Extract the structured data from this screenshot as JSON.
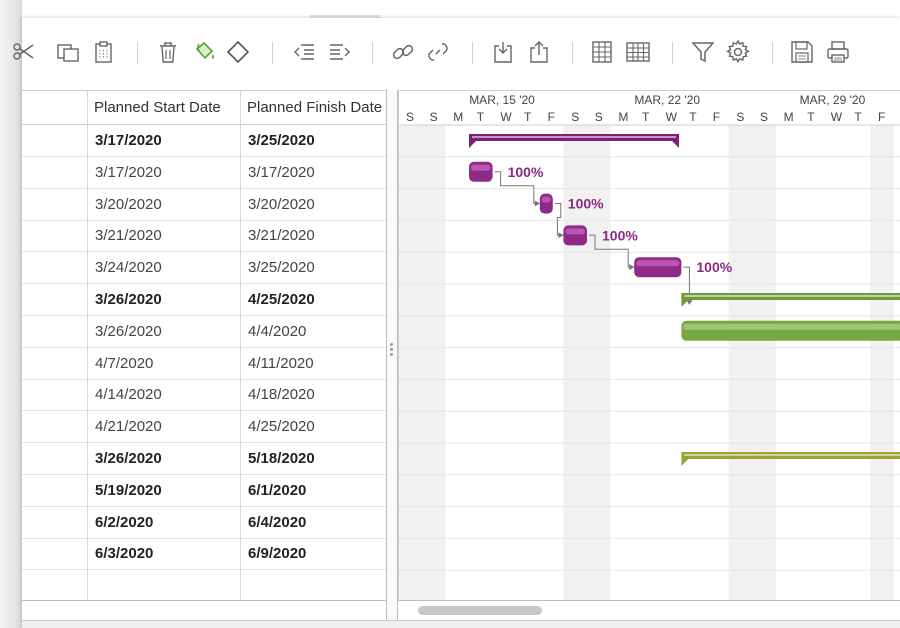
{
  "toolbar": {
    "groups": [
      [
        "scissors-icon",
        "copy-icon",
        "paste-icon"
      ],
      [
        "trash-icon",
        "paint-bucket-icon",
        "diamond-milestone-icon"
      ],
      [
        "outdent-icon",
        "indent-icon"
      ],
      [
        "link-icon",
        "unlink-icon"
      ],
      [
        "import-icon",
        "export-icon"
      ],
      [
        "columns-icon",
        "table-icon"
      ],
      [
        "filter-icon",
        "gear-icon"
      ],
      [
        "save-icon",
        "print-icon"
      ]
    ]
  },
  "grid": {
    "columns": [
      {
        "key": "start",
        "label": "Planned Start Date"
      },
      {
        "key": "finish",
        "label": "Planned Finish Date"
      }
    ],
    "rows": [
      {
        "start": "3/17/2020",
        "finish": "3/25/2020",
        "bold": true
      },
      {
        "start": "3/17/2020",
        "finish": "3/17/2020",
        "bold": false
      },
      {
        "start": "3/20/2020",
        "finish": "3/20/2020",
        "bold": false
      },
      {
        "start": "3/21/2020",
        "finish": "3/21/2020",
        "bold": false
      },
      {
        "start": "3/24/2020",
        "finish": "3/25/2020",
        "bold": false
      },
      {
        "start": "3/26/2020",
        "finish": "4/25/2020",
        "bold": true
      },
      {
        "start": "3/26/2020",
        "finish": "4/4/2020",
        "bold": false
      },
      {
        "start": "4/7/2020",
        "finish": "4/11/2020",
        "bold": false
      },
      {
        "start": "4/14/2020",
        "finish": "4/18/2020",
        "bold": false
      },
      {
        "start": "4/21/2020",
        "finish": "4/25/2020",
        "bold": false
      },
      {
        "start": "3/26/2020",
        "finish": "5/18/2020",
        "bold": true
      },
      {
        "start": "5/19/2020",
        "finish": "6/1/2020",
        "bold": true
      },
      {
        "start": "6/2/2020",
        "finish": "6/4/2020",
        "bold": true
      },
      {
        "start": "6/3/2020",
        "finish": "6/9/2020",
        "bold": true
      },
      {
        "start": "",
        "finish": "",
        "bold": false
      }
    ]
  },
  "gantt": {
    "weeks": [
      "MAR, 15 '20",
      "MAR, 22 '20",
      "MAR, 29 '20"
    ],
    "days": [
      "S",
      "S",
      "M",
      "T",
      "W",
      "T",
      "F",
      "S",
      "S",
      "M",
      "T",
      "W",
      "T",
      "F",
      "S",
      "S",
      "M",
      "T",
      "W",
      "T",
      "F"
    ],
    "weekend_days": [
      0,
      1,
      7,
      8,
      14,
      15,
      20
    ],
    "colors": {
      "summary_purple": "#7c2175",
      "task_purple": "#8e2a87",
      "task_purple_light": "#c25dbb",
      "summary_green": "#6f9a3a",
      "task_green": "#78a843",
      "summary_olive": "#9aa23a",
      "connector": "#777777",
      "weekend_shade": "#f1f1f1",
      "grid_line": "#e6e6e6"
    },
    "bars": [
      {
        "row": 0,
        "kind": "summary",
        "start_day": 3,
        "end_day": 11.9,
        "color": "summary_purple"
      },
      {
        "row": 1,
        "kind": "task",
        "start_day": 3,
        "end_day": 4.0,
        "color": "task_purple",
        "pct": "100%"
      },
      {
        "row": 2,
        "kind": "task",
        "start_day": 6,
        "end_day": 6.55,
        "color": "task_purple",
        "pct": "100%"
      },
      {
        "row": 3,
        "kind": "task",
        "start_day": 7,
        "end_day": 8.0,
        "color": "task_purple",
        "pct": "100%"
      },
      {
        "row": 4,
        "kind": "task",
        "start_day": 10,
        "end_day": 12.0,
        "color": "task_purple",
        "pct": "100%"
      },
      {
        "row": 5,
        "kind": "summary",
        "start_day": 12,
        "end_day": 30,
        "color": "summary_green"
      },
      {
        "row": 6,
        "kind": "task",
        "start_day": 12,
        "end_day": 30,
        "color": "task_green"
      },
      {
        "row": 10,
        "kind": "summary",
        "start_day": 12,
        "end_day": 30,
        "color": "summary_olive"
      }
    ],
    "links": [
      {
        "from_row": 1,
        "to_row": 2
      },
      {
        "from_row": 2,
        "to_row": 3
      },
      {
        "from_row": 3,
        "to_row": 4
      },
      {
        "from_row": 4,
        "to_row": 5
      }
    ]
  }
}
